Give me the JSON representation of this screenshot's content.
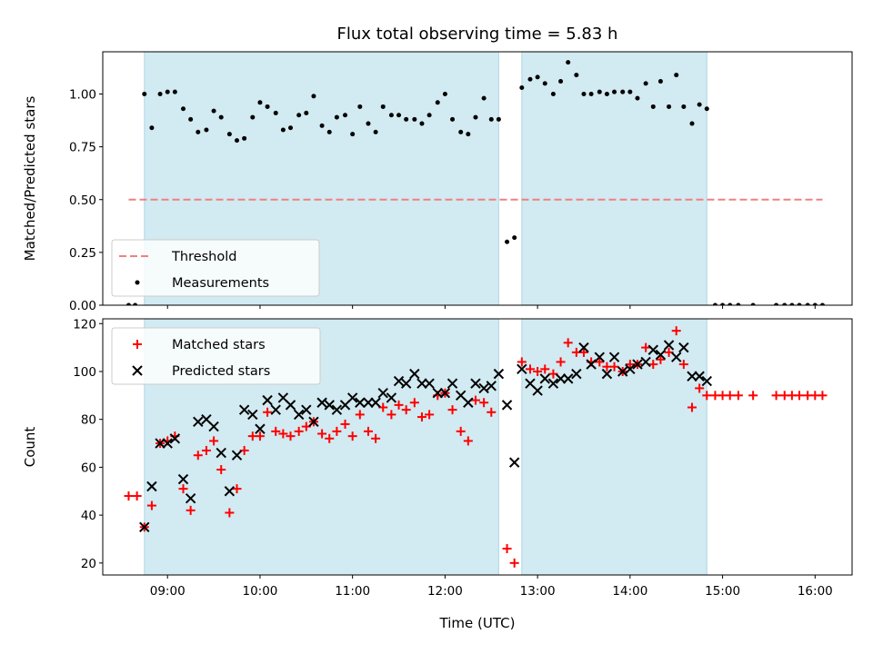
{
  "chart_data": {
    "title": "Flux total observing time = 5.83 h",
    "xlabel": "Time (UTC)",
    "x_unit": "hours (UTC)",
    "x_ticks": [
      9,
      10,
      11,
      12,
      13,
      14,
      15,
      16
    ],
    "x_tick_labels": [
      "09:00",
      "10:00",
      "11:00",
      "12:00",
      "13:00",
      "14:00",
      "15:00",
      "16:00"
    ],
    "xlim": [
      8.3,
      16.4
    ],
    "shaded_intervals": [
      [
        8.75,
        12.58
      ],
      [
        12.83,
        14.83
      ]
    ],
    "shade_color": "#add8e6",
    "panels": [
      {
        "type": "scatter",
        "ylabel": "Matched/Predicted stars",
        "ylim": [
          0,
          1.2
        ],
        "y_ticks": [
          0.0,
          0.25,
          0.5,
          0.75,
          1.0
        ],
        "y_tick_labels": [
          "0.00",
          "0.25",
          "0.50",
          "0.75",
          "1.00"
        ],
        "threshold": {
          "name": "Threshold",
          "y": 0.5,
          "x_range": [
            8.58,
            16.08
          ],
          "color": "#f08080"
        },
        "legend": {
          "position": "lower left",
          "entries": [
            "Threshold",
            "Measurements"
          ]
        },
        "series": [
          {
            "name": "Measurements",
            "color": "#000000",
            "x": [
              8.58,
              8.65,
              8.75,
              8.83,
              8.92,
              9.0,
              9.08,
              9.17,
              9.25,
              9.33,
              9.42,
              9.5,
              9.58,
              9.67,
              9.75,
              9.83,
              9.92,
              10.0,
              10.08,
              10.17,
              10.25,
              10.33,
              10.42,
              10.5,
              10.58,
              10.67,
              10.75,
              10.83,
              10.92,
              11.0,
              11.08,
              11.17,
              11.25,
              11.33,
              11.42,
              11.5,
              11.58,
              11.67,
              11.75,
              11.83,
              11.92,
              12.0,
              12.08,
              12.17,
              12.25,
              12.33,
              12.42,
              12.5,
              12.58,
              12.67,
              12.75,
              12.83,
              12.92,
              13.0,
              13.08,
              13.17,
              13.25,
              13.33,
              13.42,
              13.5,
              13.58,
              13.67,
              13.75,
              13.83,
              13.92,
              14.0,
              14.08,
              14.17,
              14.25,
              14.33,
              14.42,
              14.5,
              14.58,
              14.67,
              14.75,
              14.83,
              14.92,
              15.0,
              15.08,
              15.17,
              15.33,
              15.58,
              15.67,
              15.75,
              15.83,
              15.92,
              16.0,
              16.08
            ],
            "y": [
              0.0,
              0.0,
              1.0,
              0.84,
              1.0,
              1.01,
              1.01,
              0.93,
              0.88,
              0.82,
              0.83,
              0.92,
              0.89,
              0.81,
              0.78,
              0.79,
              0.89,
              0.96,
              0.94,
              0.91,
              0.83,
              0.84,
              0.9,
              0.91,
              0.99,
              0.85,
              0.82,
              0.89,
              0.9,
              0.81,
              0.94,
              0.86,
              0.82,
              0.94,
              0.9,
              0.9,
              0.88,
              0.88,
              0.86,
              0.9,
              0.96,
              1.0,
              0.88,
              0.82,
              0.81,
              0.89,
              0.98,
              0.88,
              0.88,
              0.3,
              0.32,
              1.03,
              1.07,
              1.08,
              1.05,
              1.0,
              1.06,
              1.15,
              1.09,
              1.0,
              1.0,
              1.01,
              1.0,
              1.01,
              1.01,
              1.01,
              0.98,
              1.05,
              0.94,
              1.06,
              0.94,
              1.09,
              0.94,
              0.86,
              0.95,
              0.93,
              0.0,
              0.0,
              0.0,
              0.0,
              0.0,
              0.0,
              0.0,
              0.0,
              0.0,
              0.0,
              0.0,
              0.0
            ]
          }
        ]
      },
      {
        "type": "scatter",
        "ylabel": "Count",
        "ylim": [
          15,
          122
        ],
        "y_ticks": [
          20,
          40,
          60,
          80,
          100,
          120
        ],
        "y_tick_labels": [
          "20",
          "40",
          "60",
          "80",
          "100",
          "120"
        ],
        "legend": {
          "position": "upper left",
          "entries": [
            "Matched stars",
            "Predicted stars"
          ]
        },
        "series": [
          {
            "name": "Matched stars",
            "marker": "+",
            "color": "#ff0000",
            "x": [
              8.58,
              8.67,
              8.75,
              8.83,
              8.92,
              9.0,
              9.08,
              9.17,
              9.25,
              9.33,
              9.42,
              9.5,
              9.58,
              9.67,
              9.75,
              9.83,
              9.92,
              10.0,
              10.08,
              10.17,
              10.25,
              10.33,
              10.42,
              10.5,
              10.58,
              10.67,
              10.75,
              10.83,
              10.92,
              11.0,
              11.08,
              11.17,
              11.25,
              11.33,
              11.42,
              11.5,
              11.58,
              11.67,
              11.75,
              11.83,
              11.92,
              12.0,
              12.08,
              12.17,
              12.25,
              12.33,
              12.42,
              12.5,
              12.67,
              12.75,
              12.83,
              12.92,
              13.0,
              13.08,
              13.17,
              13.25,
              13.33,
              13.42,
              13.5,
              13.58,
              13.67,
              13.75,
              13.83,
              13.92,
              14.0,
              14.08,
              14.17,
              14.25,
              14.33,
              14.42,
              14.5,
              14.58,
              14.67,
              14.75,
              14.83,
              14.92,
              15.0,
              15.08,
              15.17,
              15.33,
              15.58,
              15.67,
              15.75,
              15.83,
              15.92,
              16.0,
              16.08
            ],
            "y": [
              48,
              48,
              35,
              44,
              70,
              71,
              73,
              51,
              42,
              65,
              67,
              71,
              59,
              41,
              51,
              67,
              73,
              73,
              83,
              75,
              74,
              73,
              75,
              77,
              79,
              74,
              72,
              75,
              78,
              73,
              82,
              75,
              72,
              85,
              82,
              86,
              84,
              87,
              81,
              82,
              90,
              91,
              84,
              75,
              71,
              88,
              87,
              83,
              26,
              20,
              104,
              101,
              100,
              101,
              99,
              104,
              112,
              108,
              108,
              104,
              104,
              102,
              102,
              100,
              103,
              103,
              110,
              103,
              105,
              108,
              117,
              103,
              85,
              93,
              90,
              90,
              90,
              90,
              90,
              90,
              90,
              90,
              90,
              90,
              90,
              90,
              90
            ]
          },
          {
            "name": "Predicted stars",
            "marker": "x",
            "color": "#000000",
            "x": [
              8.75,
              8.83,
              8.92,
              9.0,
              9.08,
              9.17,
              9.25,
              9.33,
              9.42,
              9.5,
              9.58,
              9.67,
              9.75,
              9.83,
              9.92,
              10.0,
              10.08,
              10.17,
              10.25,
              10.33,
              10.42,
              10.5,
              10.58,
              10.67,
              10.75,
              10.83,
              10.92,
              11.0,
              11.08,
              11.17,
              11.25,
              11.33,
              11.42,
              11.5,
              11.58,
              11.67,
              11.75,
              11.83,
              11.92,
              12.0,
              12.08,
              12.17,
              12.25,
              12.33,
              12.42,
              12.5,
              12.58,
              12.67,
              12.75,
              12.83,
              12.92,
              13.0,
              13.08,
              13.17,
              13.25,
              13.33,
              13.42,
              13.5,
              13.58,
              13.67,
              13.75,
              13.83,
              13.92,
              14.0,
              14.08,
              14.17,
              14.25,
              14.33,
              14.42,
              14.5,
              14.58,
              14.67,
              14.75,
              14.83
            ],
            "y": [
              35,
              52,
              70,
              70,
              72,
              55,
              47,
              79,
              80,
              77,
              66,
              50,
              65,
              84,
              82,
              76,
              88,
              84,
              89,
              86,
              82,
              84,
              79,
              87,
              86,
              84,
              86,
              89,
              87,
              87,
              87,
              91,
              89,
              96,
              95,
              99,
              95,
              95,
              91,
              91,
              95,
              90,
              87,
              95,
              93,
              94,
              99,
              86,
              62,
              101,
              95,
              92,
              97,
              95,
              97,
              97,
              99,
              110,
              103,
              106,
              99,
              106,
              100,
              101,
              103,
              104,
              109,
              107,
              111,
              106,
              110,
              98,
              98,
              96
            ]
          }
        ]
      }
    ]
  }
}
